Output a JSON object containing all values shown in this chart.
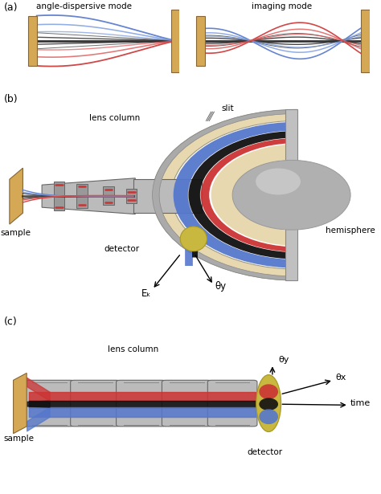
{
  "bg_color": "#ffffff",
  "panel_bg_a": "#dcdcdc",
  "title_a": "(a)",
  "title_b": "(b)",
  "title_c": "(c)",
  "label_angle": "angle-dispersive mode",
  "label_imaging": "imaging mode",
  "label_lens_b": "lens column",
  "label_slit": "slit",
  "label_sample_b": "sample",
  "label_detector_b": "detector",
  "label_hemisphere": "hemisphere",
  "label_Ek": "Eₖ",
  "label_theta_y_b": "θy",
  "label_sample_c": "sample",
  "label_lens_c": "lens column",
  "label_detector_c": "detector",
  "label_theta_y_c": "θy",
  "label_theta_x": "θx",
  "label_time": "time",
  "color_blue": "#5577cc",
  "color_blue_light": "#7799dd",
  "color_red": "#cc3333",
  "color_red_light": "#dd5555",
  "color_black_ray": "#222222",
  "color_gray_ray": "#555555",
  "color_lens_body": "#bbbbbb",
  "color_lens_ring": "#999999",
  "color_lens_dark": "#666666",
  "color_hemisphere_beige": "#e8d8b0",
  "color_hemisphere_gray": "#aaaaaa",
  "color_sphere_body": "#b0b0b0",
  "color_sphere_light": "#d0d0d0",
  "color_sample": "#d4a855",
  "color_detector_disk": "#c8b840",
  "color_flat_face": "#c0c0c0"
}
